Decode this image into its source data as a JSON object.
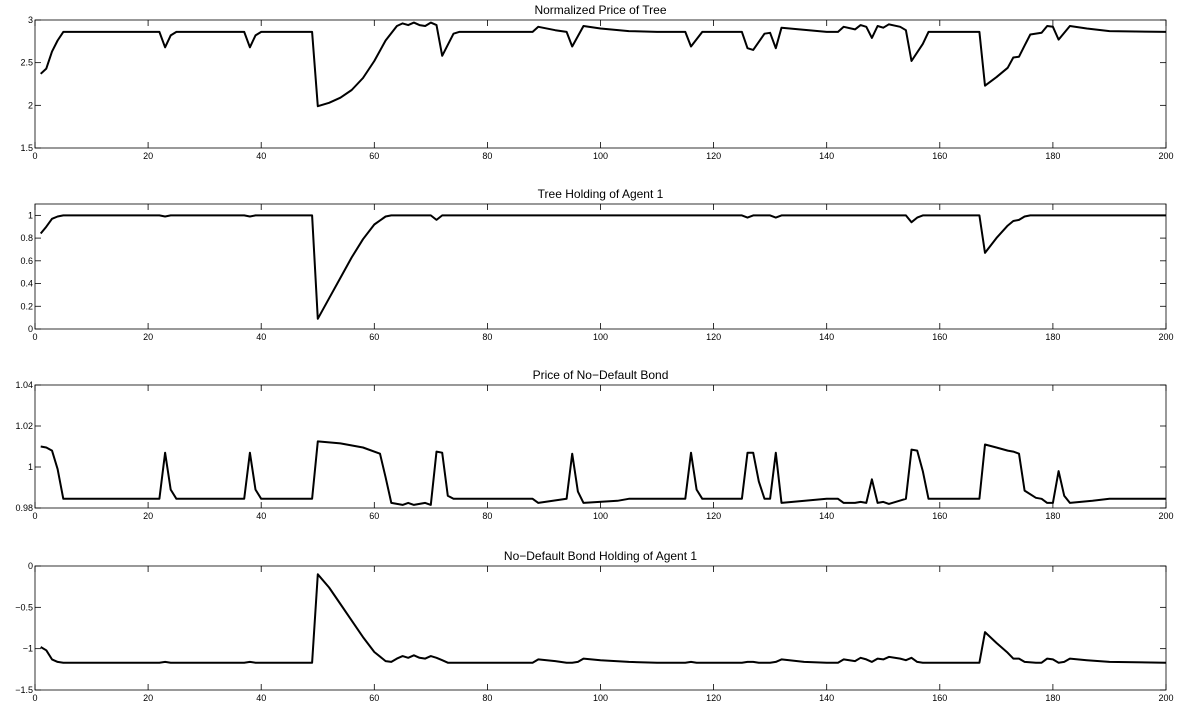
{
  "chart_data": [
    {
      "type": "line",
      "title": "Normalized Price of Tree",
      "xlim": [
        0,
        200
      ],
      "ylim": [
        1.5,
        3
      ],
      "xticks": [
        "0",
        "20",
        "40",
        "60",
        "80",
        "100",
        "120",
        "140",
        "160",
        "180",
        "200"
      ],
      "yticks": [
        "1.5",
        "2",
        "2.5",
        "3"
      ],
      "grid": false,
      "color": "#000000",
      "points": [
        [
          1,
          2.37
        ],
        [
          2,
          2.43
        ],
        [
          3,
          2.63
        ],
        [
          4,
          2.76
        ],
        [
          5,
          2.86
        ],
        [
          22,
          2.86
        ],
        [
          23,
          2.68
        ],
        [
          24,
          2.82
        ],
        [
          25,
          2.86
        ],
        [
          37,
          2.86
        ],
        [
          38,
          2.68
        ],
        [
          39,
          2.82
        ],
        [
          40,
          2.86
        ],
        [
          49,
          2.86
        ],
        [
          50,
          1.99
        ],
        [
          52,
          2.03
        ],
        [
          54,
          2.09
        ],
        [
          56,
          2.18
        ],
        [
          58,
          2.32
        ],
        [
          60,
          2.52
        ],
        [
          62,
          2.76
        ],
        [
          64,
          2.93
        ],
        [
          65,
          2.96
        ],
        [
          66,
          2.94
        ],
        [
          67,
          2.97
        ],
        [
          68,
          2.94
        ],
        [
          69,
          2.93
        ],
        [
          70,
          2.97
        ],
        [
          71,
          2.94
        ],
        [
          72,
          2.58
        ],
        [
          74,
          2.84
        ],
        [
          75,
          2.86
        ],
        [
          88,
          2.86
        ],
        [
          89,
          2.92
        ],
        [
          92,
          2.88
        ],
        [
          94,
          2.86
        ],
        [
          95,
          2.69
        ],
        [
          97,
          2.93
        ],
        [
          100,
          2.9
        ],
        [
          105,
          2.87
        ],
        [
          110,
          2.86
        ],
        [
          115,
          2.86
        ],
        [
          116,
          2.69
        ],
        [
          118,
          2.86
        ],
        [
          125,
          2.86
        ],
        [
          126,
          2.67
        ],
        [
          127,
          2.65
        ],
        [
          129,
          2.84
        ],
        [
          130,
          2.85
        ],
        [
          131,
          2.67
        ],
        [
          132,
          2.91
        ],
        [
          140,
          2.86
        ],
        [
          142,
          2.86
        ],
        [
          143,
          2.92
        ],
        [
          145,
          2.89
        ],
        [
          146,
          2.94
        ],
        [
          147,
          2.92
        ],
        [
          148,
          2.79
        ],
        [
          149,
          2.93
        ],
        [
          150,
          2.91
        ],
        [
          151,
          2.95
        ],
        [
          153,
          2.92
        ],
        [
          154,
          2.88
        ],
        [
          155,
          2.52
        ],
        [
          157,
          2.72
        ],
        [
          158,
          2.86
        ],
        [
          167,
          2.86
        ],
        [
          168,
          2.23
        ],
        [
          170,
          2.33
        ],
        [
          172,
          2.44
        ],
        [
          173,
          2.56
        ],
        [
          174,
          2.57
        ],
        [
          175,
          2.7
        ],
        [
          176,
          2.83
        ],
        [
          178,
          2.85
        ],
        [
          179,
          2.93
        ],
        [
          180,
          2.92
        ],
        [
          181,
          2.77
        ],
        [
          183,
          2.93
        ],
        [
          186,
          2.9
        ],
        [
          190,
          2.87
        ],
        [
          200,
          2.86
        ]
      ]
    },
    {
      "type": "line",
      "title": "Tree Holding of Agent 1",
      "xlim": [
        0,
        200
      ],
      "ylim": [
        0,
        1.1
      ],
      "xticks": [
        "0",
        "20",
        "40",
        "60",
        "80",
        "100",
        "120",
        "140",
        "160",
        "180",
        "200"
      ],
      "yticks": [
        "0",
        "0.2",
        "0.4",
        "0.6",
        "0.8",
        "1"
      ],
      "grid": false,
      "color": "#000000",
      "points": [
        [
          1,
          0.84
        ],
        [
          2,
          0.9
        ],
        [
          3,
          0.97
        ],
        [
          4,
          0.99
        ],
        [
          5,
          1.0
        ],
        [
          22,
          1.0
        ],
        [
          23,
          0.99
        ],
        [
          24,
          1.0
        ],
        [
          37,
          1.0
        ],
        [
          38,
          0.99
        ],
        [
          39,
          1.0
        ],
        [
          49,
          1.0
        ],
        [
          50,
          0.09
        ],
        [
          52,
          0.27
        ],
        [
          54,
          0.45
        ],
        [
          56,
          0.63
        ],
        [
          58,
          0.79
        ],
        [
          60,
          0.92
        ],
        [
          62,
          0.99
        ],
        [
          63,
          1.0
        ],
        [
          70,
          1.0
        ],
        [
          71,
          0.96
        ],
        [
          72,
          1.0
        ],
        [
          125,
          1.0
        ],
        [
          126,
          0.98
        ],
        [
          127,
          1.0
        ],
        [
          130,
          1.0
        ],
        [
          131,
          0.98
        ],
        [
          132,
          1.0
        ],
        [
          154,
          1.0
        ],
        [
          155,
          0.94
        ],
        [
          156,
          0.98
        ],
        [
          157,
          1.0
        ],
        [
          167,
          1.0
        ],
        [
          168,
          0.67
        ],
        [
          170,
          0.8
        ],
        [
          172,
          0.91
        ],
        [
          173,
          0.95
        ],
        [
          174,
          0.96
        ],
        [
          175,
          0.99
        ],
        [
          176,
          1.0
        ],
        [
          200,
          1.0
        ]
      ]
    },
    {
      "type": "line",
      "title": "Price of No−Default Bond",
      "xlim": [
        0,
        200
      ],
      "ylim": [
        0.98,
        1.04
      ],
      "xticks": [
        "0",
        "20",
        "40",
        "60",
        "80",
        "100",
        "120",
        "140",
        "160",
        "180",
        "200"
      ],
      "yticks": [
        "0.98",
        "1",
        "1.02",
        "1.04"
      ],
      "grid": false,
      "color": "#000000",
      "points": [
        [
          1,
          1.01
        ],
        [
          2,
          1.0095
        ],
        [
          3,
          1.008
        ],
        [
          4,
          0.999
        ],
        [
          5,
          0.9845
        ],
        [
          22,
          0.9845
        ],
        [
          23,
          1.007
        ],
        [
          24,
          0.989
        ],
        [
          25,
          0.9845
        ],
        [
          37,
          0.9845
        ],
        [
          38,
          1.007
        ],
        [
          39,
          0.989
        ],
        [
          40,
          0.9845
        ],
        [
          49,
          0.9845
        ],
        [
          50,
          1.0125
        ],
        [
          54,
          1.0115
        ],
        [
          58,
          1.0095
        ],
        [
          61,
          1.0065
        ],
        [
          62,
          0.995
        ],
        [
          63,
          0.9825
        ],
        [
          65,
          0.9815
        ],
        [
          66,
          0.9825
        ],
        [
          67,
          0.9815
        ],
        [
          69,
          0.9825
        ],
        [
          70,
          0.9815
        ],
        [
          71,
          1.0075
        ],
        [
          72,
          1.007
        ],
        [
          73,
          0.986
        ],
        [
          74,
          0.9845
        ],
        [
          88,
          0.9845
        ],
        [
          89,
          0.9825
        ],
        [
          94,
          0.9845
        ],
        [
          95,
          1.0065
        ],
        [
          96,
          0.988
        ],
        [
          97,
          0.9825
        ],
        [
          103,
          0.9835
        ],
        [
          105,
          0.9845
        ],
        [
          115,
          0.9845
        ],
        [
          116,
          1.007
        ],
        [
          117,
          0.989
        ],
        [
          118,
          0.9845
        ],
        [
          125,
          0.9845
        ],
        [
          126,
          1.007
        ],
        [
          127,
          1.007
        ],
        [
          128,
          0.993
        ],
        [
          129,
          0.9845
        ],
        [
          130,
          0.9845
        ],
        [
          131,
          1.007
        ],
        [
          132,
          0.9825
        ],
        [
          140,
          0.9845
        ],
        [
          142,
          0.9845
        ],
        [
          143,
          0.9825
        ],
        [
          145,
          0.9825
        ],
        [
          146,
          0.983
        ],
        [
          147,
          0.9825
        ],
        [
          148,
          0.994
        ],
        [
          149,
          0.9825
        ],
        [
          150,
          0.983
        ],
        [
          151,
          0.982
        ],
        [
          154,
          0.9845
        ],
        [
          155,
          1.0085
        ],
        [
          156,
          1.008
        ],
        [
          157,
          0.998
        ],
        [
          158,
          0.9845
        ],
        [
          167,
          0.9845
        ],
        [
          168,
          1.011
        ],
        [
          170,
          1.0095
        ],
        [
          172,
          1.008
        ],
        [
          173,
          1.0075
        ],
        [
          174,
          1.0065
        ],
        [
          175,
          0.9885
        ],
        [
          177,
          0.985
        ],
        [
          178,
          0.9845
        ],
        [
          179,
          0.9825
        ],
        [
          180,
          0.9825
        ],
        [
          181,
          0.998
        ],
        [
          182,
          0.986
        ],
        [
          183,
          0.9825
        ],
        [
          187,
          0.9835
        ],
        [
          190,
          0.9845
        ],
        [
          200,
          0.9845
        ]
      ]
    },
    {
      "type": "line",
      "title": "No−Default Bond Holding of Agent 1",
      "xlim": [
        0,
        200
      ],
      "ylim": [
        -1.5,
        0
      ],
      "xticks": [
        "0",
        "20",
        "40",
        "60",
        "80",
        "100",
        "120",
        "140",
        "160",
        "180",
        "200"
      ],
      "yticks": [
        "−1.5",
        "−1",
        "−0.5",
        "0"
      ],
      "grid": false,
      "color": "#000000",
      "points": [
        [
          1,
          -0.98
        ],
        [
          2,
          -1.02
        ],
        [
          3,
          -1.13
        ],
        [
          4,
          -1.16
        ],
        [
          5,
          -1.17
        ],
        [
          22,
          -1.17
        ],
        [
          23,
          -1.16
        ],
        [
          24,
          -1.17
        ],
        [
          37,
          -1.17
        ],
        [
          38,
          -1.16
        ],
        [
          39,
          -1.17
        ],
        [
          49,
          -1.17
        ],
        [
          50,
          -0.1
        ],
        [
          52,
          -0.26
        ],
        [
          54,
          -0.46
        ],
        [
          56,
          -0.66
        ],
        [
          58,
          -0.86
        ],
        [
          60,
          -1.04
        ],
        [
          62,
          -1.15
        ],
        [
          63,
          -1.16
        ],
        [
          64,
          -1.12
        ],
        [
          65,
          -1.09
        ],
        [
          66,
          -1.11
        ],
        [
          67,
          -1.08
        ],
        [
          68,
          -1.11
        ],
        [
          69,
          -1.12
        ],
        [
          70,
          -1.09
        ],
        [
          71,
          -1.11
        ],
        [
          72,
          -1.14
        ],
        [
          73,
          -1.17
        ],
        [
          88,
          -1.17
        ],
        [
          89,
          -1.13
        ],
        [
          92,
          -1.15
        ],
        [
          94,
          -1.17
        ],
        [
          95,
          -1.17
        ],
        [
          96,
          -1.16
        ],
        [
          97,
          -1.12
        ],
        [
          100,
          -1.14
        ],
        [
          105,
          -1.16
        ],
        [
          110,
          -1.17
        ],
        [
          115,
          -1.17
        ],
        [
          116,
          -1.16
        ],
        [
          117,
          -1.17
        ],
        [
          125,
          -1.17
        ],
        [
          126,
          -1.16
        ],
        [
          127,
          -1.16
        ],
        [
          128,
          -1.17
        ],
        [
          130,
          -1.17
        ],
        [
          131,
          -1.16
        ],
        [
          132,
          -1.13
        ],
        [
          136,
          -1.16
        ],
        [
          140,
          -1.17
        ],
        [
          142,
          -1.17
        ],
        [
          143,
          -1.13
        ],
        [
          145,
          -1.15
        ],
        [
          146,
          -1.11
        ],
        [
          147,
          -1.13
        ],
        [
          148,
          -1.16
        ],
        [
          149,
          -1.12
        ],
        [
          150,
          -1.13
        ],
        [
          151,
          -1.1
        ],
        [
          153,
          -1.12
        ],
        [
          154,
          -1.14
        ],
        [
          155,
          -1.11
        ],
        [
          156,
          -1.16
        ],
        [
          157,
          -1.17
        ],
        [
          167,
          -1.17
        ],
        [
          168,
          -0.8
        ],
        [
          170,
          -0.93
        ],
        [
          172,
          -1.05
        ],
        [
          173,
          -1.12
        ],
        [
          174,
          -1.12
        ],
        [
          175,
          -1.16
        ],
        [
          177,
          -1.17
        ],
        [
          178,
          -1.17
        ],
        [
          179,
          -1.12
        ],
        [
          180,
          -1.13
        ],
        [
          181,
          -1.17
        ],
        [
          182,
          -1.16
        ],
        [
          183,
          -1.12
        ],
        [
          186,
          -1.14
        ],
        [
          190,
          -1.16
        ],
        [
          200,
          -1.17
        ]
      ]
    }
  ]
}
